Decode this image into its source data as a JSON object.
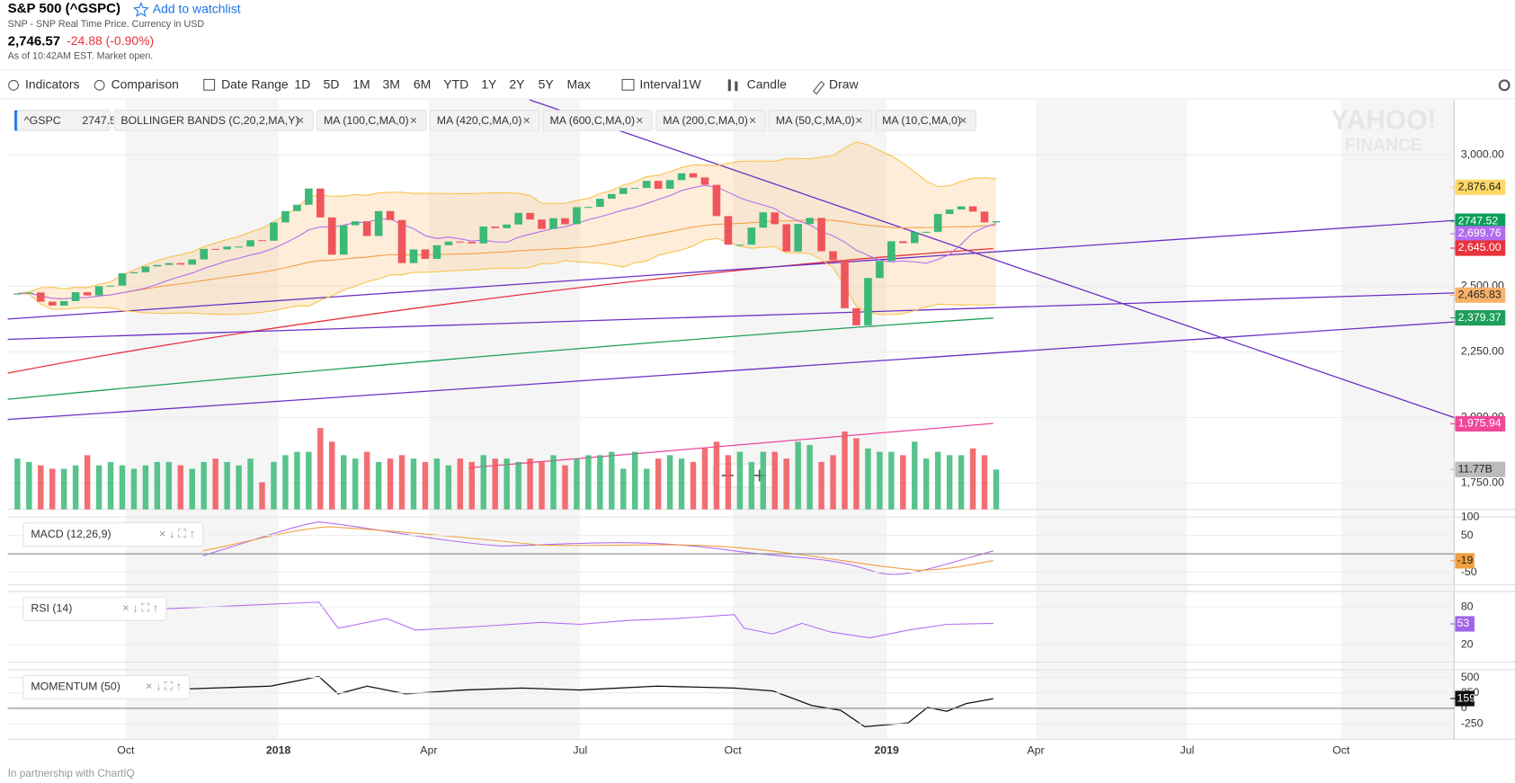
{
  "header": {
    "title": "S&P 500 (^GSPC)",
    "watchlist": "Add to watchlist",
    "subtitle": "SNP - SNP Real Time Price. Currency in USD",
    "price": "2,746.57",
    "change": "-24.88 (-0.90%)",
    "status": "As of 10:42AM EST. Market open."
  },
  "toolbar": {
    "indicators": "Indicators",
    "comparison": "Comparison",
    "date_range": "Date Range",
    "ranges": [
      "1D",
      "5D",
      "1M",
      "3M",
      "6M",
      "YTD",
      "1Y",
      "2Y",
      "5Y",
      "Max"
    ],
    "interval": "Interval",
    "interval_value": "1W",
    "chart_type": "Candle",
    "draw": "Draw"
  },
  "legend": {
    "symbol": "^GSPC",
    "price": "2747.52",
    "studies": [
      "BOLLINGER BANDS (C,20,2,MA,Y)",
      "MA (100,C,MA,0)",
      "MA (420,C,MA,0)",
      "MA (600,C,MA,0)",
      "MA (200,C,MA,0)",
      "MA (50,C,MA,0)",
      "MA (10,C,MA,0)"
    ]
  },
  "chart": {
    "type": "candlestick",
    "watermark": [
      "YAHOO!",
      "FINANCE"
    ],
    "xlim": [
      -0.83,
      123.3
    ],
    "xticks": [
      {
        "value": 9.3,
        "label": "Oct"
      },
      {
        "value": 22.4,
        "label": "2018"
      },
      {
        "value": 35.3,
        "label": "Apr"
      },
      {
        "value": 48.3,
        "label": "Jul"
      },
      {
        "value": 61.4,
        "label": "Oct"
      },
      {
        "value": 74.6,
        "label": "2019"
      },
      {
        "value": 87.4,
        "label": "Apr"
      },
      {
        "value": 100.4,
        "label": "Jul"
      },
      {
        "value": 113.6,
        "label": "Oct"
      }
    ],
    "ylim": [
      1650,
      3210
    ],
    "yticks": [
      {
        "value": 3000,
        "label": "3,000.00"
      },
      {
        "value": 2500,
        "label": "2,500.00"
      },
      {
        "value": 2250,
        "label": "2,250.00"
      },
      {
        "value": 2000,
        "label": "2,000.00"
      },
      {
        "value": 1750,
        "label": "1,750.00"
      }
    ],
    "close": [
      2472,
      2476,
      2441,
      2426,
      2443,
      2477,
      2465,
      2500,
      2502,
      2549,
      2553,
      2575,
      2581,
      2588,
      2582,
      2602,
      2642,
      2640,
      2651,
      2651,
      2675,
      2673,
      2743,
      2786,
      2810,
      2872,
      2762,
      2620,
      2732,
      2747,
      2691,
      2786,
      2752,
      2588,
      2640,
      2604,
      2656,
      2670,
      2669,
      2663,
      2727,
      2721,
      2735,
      2779,
      2754,
      2718,
      2759,
      2736,
      2801,
      2802,
      2833,
      2851,
      2874,
      2874,
      2901,
      2871,
      2904,
      2930,
      2914,
      2886,
      2767,
      2658,
      2658,
      2723,
      2781,
      2736,
      2632,
      2737,
      2760,
      2633,
      2599,
      2416,
      2351,
      2531,
      2596,
      2671,
      2664,
      2706,
      2707,
      2775,
      2792,
      2804,
      2784,
      2743,
      2747.52
    ],
    "volume": [
      15,
      14,
      13,
      12,
      12,
      13,
      16,
      13,
      14,
      13,
      12,
      13,
      14,
      14,
      13,
      12,
      14,
      15,
      14,
      13,
      15,
      8,
      14,
      16,
      17,
      17,
      24,
      20,
      16,
      15,
      17,
      14,
      15,
      16,
      15,
      14,
      15,
      13,
      15,
      14,
      16,
      15,
      15,
      14,
      15,
      14,
      16,
      13,
      15,
      16,
      16,
      17,
      12,
      17,
      12,
      15,
      16,
      15,
      14,
      18,
      20,
      16,
      17,
      14,
      17,
      17,
      15,
      20,
      19,
      14,
      16,
      23,
      21,
      18,
      17,
      17,
      16,
      20,
      15,
      17,
      16,
      16,
      18,
      16,
      11.77
    ],
    "volume_ylim": [
      0,
      121
    ],
    "volume_tag": {
      "value": 11.77,
      "label": "11.77B"
    },
    "up_color": "#3cb878",
    "down_color": "#f0555b",
    "price_tags": [
      {
        "value": 2876.64,
        "label": "2,876.64",
        "color": "#ffd966"
      },
      {
        "value": 2747.52,
        "label": "2747.52",
        "color": "#0a9f5a"
      },
      {
        "value": 2699.76,
        "label": "2,699.76",
        "color": "#b36cf0"
      },
      {
        "value": 2645,
        "label": "2,645.00",
        "color": "#e8323c"
      },
      {
        "value": 2465.83,
        "label": "2,465.83",
        "color": "#f8b26a"
      },
      {
        "value": 2379.37,
        "label": "2,379.37",
        "color": "#1e9f5a"
      },
      {
        "value": 1975.94,
        "label": "1,975.94",
        "color": "#f0479a"
      }
    ],
    "macd": {
      "label": "MACD (12,26,9)",
      "ylim": [
        -84,
        100
      ],
      "yticks": [
        100,
        50,
        -50
      ],
      "tag": -19
    },
    "rsi": {
      "label": "RSI (14)",
      "ylim": [
        -7.7,
        104.6
      ],
      "yticks": [
        80,
        20
      ],
      "tag": 53
    },
    "momentum": {
      "label": "MOMENTUM (50)",
      "ylim": [
        -500,
        625
      ],
      "yticks": [
        500,
        250,
        0,
        -250
      ],
      "tag": 159
    }
  },
  "footer": "In partnership with ChartIQ"
}
